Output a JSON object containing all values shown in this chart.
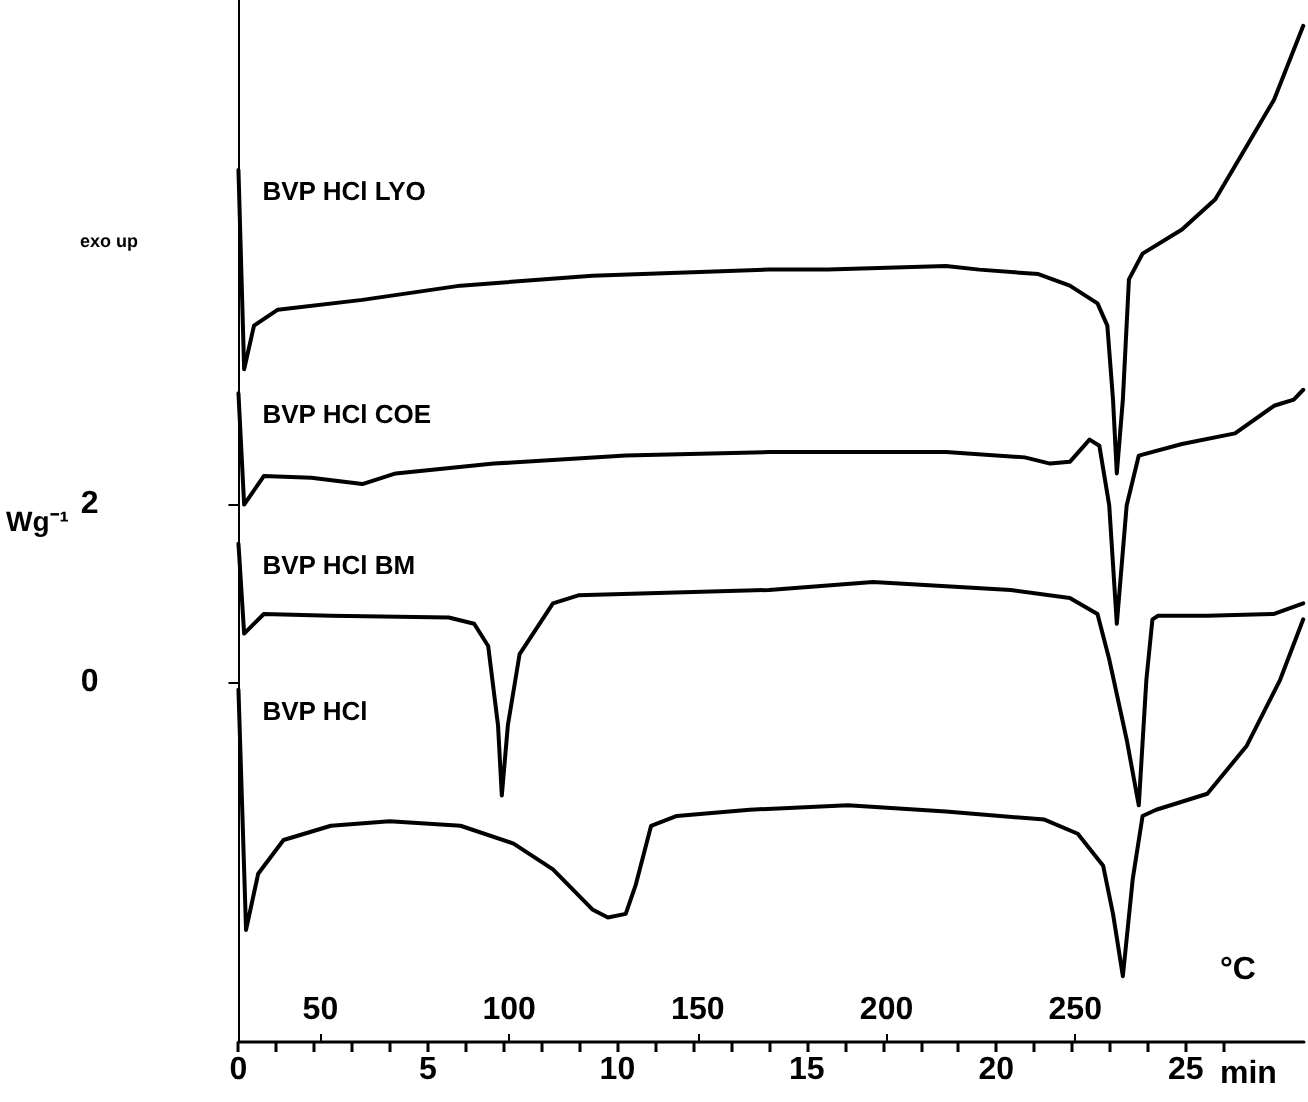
{
  "chart_data": {
    "type": "line",
    "xlabel": "min",
    "x2label": "°C",
    "ylabel": "Wg⁻¹",
    "annotations": [
      "exo up"
    ],
    "xlim": [
      0,
      28.12
    ],
    "xticks": [
      0,
      {
        "value": 1,
        "label": null
      },
      {
        "value": 2,
        "label": null
      },
      {
        "value": 3,
        "label": null
      },
      {
        "value": 4,
        "label": null
      },
      5,
      {
        "value": 6,
        "label": null
      },
      {
        "value": 7,
        "label": null
      },
      {
        "value": 8,
        "label": null
      },
      {
        "value": 9,
        "label": null
      },
      10,
      {
        "value": 11,
        "label": null
      },
      {
        "value": 12,
        "label": null
      },
      {
        "value": 13,
        "label": null
      },
      {
        "value": 14,
        "label": null
      },
      15,
      {
        "value": 16,
        "label": null
      },
      {
        "value": 17,
        "label": null
      },
      {
        "value": 18,
        "label": null
      },
      {
        "value": 19,
        "label": null
      },
      20,
      {
        "value": 21,
        "label": null
      },
      {
        "value": 22,
        "label": null
      },
      {
        "value": 23,
        "label": null
      },
      {
        "value": 24,
        "label": null
      },
      25,
      {
        "value": 26,
        "label": null
      }
    ],
    "x2lim": [
      28.3,
      310.6
    ],
    "x2ticks": [
      50,
      100,
      150,
      200,
      250
    ],
    "ylim": [
      -4.05,
      7.66
    ],
    "yticks": [
      0,
      2
    ],
    "series": [
      {
        "name": "BVP HCl LYO",
        "color": "#000000",
        "x": [
          0,
          0.15,
          0.41,
          1.04,
          3.27,
          5.86,
          9.34,
          14.0,
          15.56,
          18.67,
          19.55,
          21.11,
          21.94,
          22.67,
          22.93,
          23.08,
          23.18,
          23.34,
          23.5,
          23.86,
          24.9,
          25.78,
          26.61,
          27.33,
          28.1
        ],
        "values": [
          5.75,
          3.51,
          4.0,
          4.18,
          4.29,
          4.45,
          4.56,
          4.63,
          4.63,
          4.67,
          4.63,
          4.58,
          4.45,
          4.25,
          4.0,
          3.17,
          2.34,
          3.17,
          4.52,
          4.81,
          5.08,
          5.42,
          6.02,
          6.54,
          7.37
        ]
      },
      {
        "name": "BVP HCl COE",
        "color": "#000000",
        "x": [
          0,
          0.15,
          0.67,
          1.92,
          3.27,
          4.15,
          6.74,
          10.22,
          14.0,
          18.67,
          20.75,
          21.42,
          21.94,
          22.46,
          22.72,
          22.98,
          23.18,
          23.44,
          23.76,
          24.9,
          26.3,
          27.33,
          27.85,
          28.1
        ],
        "values": [
          3.24,
          1.99,
          2.31,
          2.29,
          2.22,
          2.34,
          2.45,
          2.54,
          2.58,
          2.58,
          2.52,
          2.45,
          2.47,
          2.72,
          2.65,
          1.98,
          0.65,
          1.98,
          2.54,
          2.67,
          2.79,
          3.1,
          3.17,
          3.28
        ]
      },
      {
        "name": "BVP HCl BM",
        "color": "#000000",
        "x": [
          0,
          0.15,
          0.67,
          2.44,
          5.55,
          6.22,
          6.59,
          6.85,
          6.95,
          7.11,
          7.42,
          8.3,
          8.97,
          14.0,
          16.75,
          20.38,
          21.94,
          22.67,
          22.98,
          23.44,
          23.76,
          23.96,
          24.12,
          24.27,
          25.57,
          27.33,
          28.1
        ],
        "values": [
          1.55,
          0.54,
          0.76,
          0.74,
          0.72,
          0.65,
          0.4,
          -0.49,
          -1.28,
          -0.49,
          0.31,
          0.88,
          0.97,
          1.03,
          1.12,
          1.03,
          0.94,
          0.76,
          0.25,
          -0.65,
          -1.39,
          0.02,
          0.7,
          0.74,
          0.74,
          0.76,
          0.88
        ]
      },
      {
        "name": "BVP HCl",
        "color": "#000000",
        "x": [
          0,
          0.2,
          0.52,
          1.19,
          2.44,
          3.99,
          5.86,
          7.26,
          8.3,
          9.34,
          9.75,
          10.22,
          10.48,
          10.89,
          11.57,
          13.49,
          16.08,
          18.67,
          21.27,
          22.15,
          22.82,
          23.08,
          23.34,
          23.6,
          23.86,
          24.22,
          25.57,
          26.61,
          27.49,
          28.1
        ],
        "values": [
          -0.09,
          -2.79,
          -2.16,
          -1.78,
          -1.62,
          -1.57,
          -1.62,
          -1.82,
          -2.11,
          -2.56,
          -2.65,
          -2.61,
          -2.29,
          -1.62,
          -1.51,
          -1.44,
          -1.39,
          -1.46,
          -1.55,
          -1.71,
          -2.07,
          -2.61,
          -3.31,
          -2.22,
          -1.51,
          -1.44,
          -1.26,
          -0.72,
          0.02,
          0.7
        ]
      }
    ]
  }
}
